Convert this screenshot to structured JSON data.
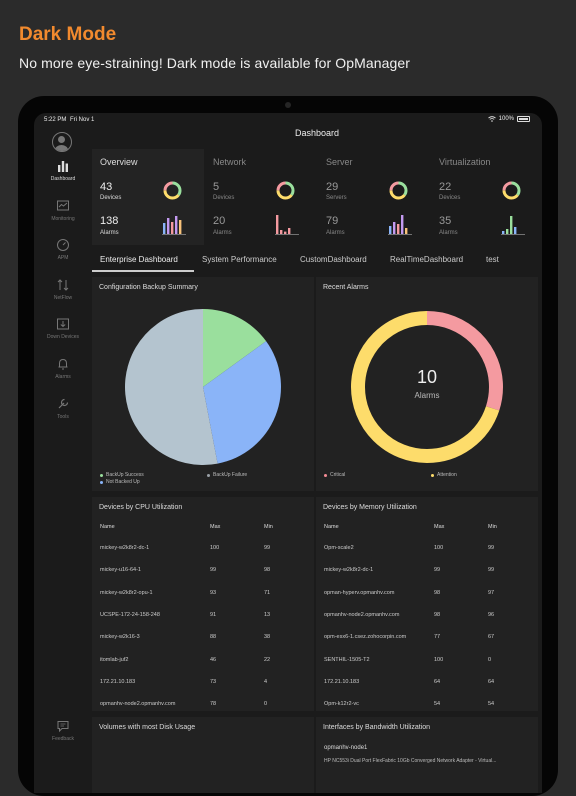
{
  "promo": {
    "title": "Dark Mode",
    "subtitle": "No more eye-straining! Dark mode is available for OpManager"
  },
  "status_bar": {
    "time": "5:22 PM",
    "date": "Fri Nov 1",
    "battery": "100%"
  },
  "header": {
    "title": "Dashboard"
  },
  "sidebar": {
    "items": [
      {
        "label": "Dashboard",
        "icon": "bar-chart-icon",
        "active": true
      },
      {
        "label": "Monitoring",
        "icon": "monitor-chart-icon",
        "active": false
      },
      {
        "label": "APM",
        "icon": "gauge-icon",
        "active": false
      },
      {
        "label": "NetFlow",
        "icon": "netflow-icon",
        "active": false
      },
      {
        "label": "Down Devices",
        "icon": "down-arrow-icon",
        "active": false
      },
      {
        "label": "Alarms",
        "icon": "bell-icon",
        "active": false
      },
      {
        "label": "Tools",
        "icon": "wrench-icon",
        "active": false
      }
    ],
    "feedback": {
      "label": "Feedback",
      "icon": "chat-icon"
    }
  },
  "summary": [
    {
      "title": "Overview",
      "count": "43",
      "count_label": "Devices",
      "alarms": "138",
      "alarms_label": "Alarms",
      "active": true
    },
    {
      "title": "Network",
      "count": "5",
      "count_label": "Devices",
      "alarms": "20",
      "alarms_label": "Alarms",
      "active": false
    },
    {
      "title": "Server",
      "count": "29",
      "count_label": "Servers",
      "alarms": "79",
      "alarms_label": "Alarms",
      "active": false
    },
    {
      "title": "Virtualization",
      "count": "22",
      "count_label": "Devices",
      "alarms": "35",
      "alarms_label": "Alarms",
      "active": false
    }
  ],
  "tabs": [
    {
      "label": "Enterprise Dashboard",
      "active": true
    },
    {
      "label": "System Performance",
      "active": false
    },
    {
      "label": "CustomDashboard",
      "active": false
    },
    {
      "label": "RealTimeDashboard",
      "active": false
    },
    {
      "label": "test",
      "active": false
    }
  ],
  "backup": {
    "title": "Configuration Backup Summary",
    "legend": [
      {
        "label": "BackUp Success",
        "color": "#9adf9d"
      },
      {
        "label": "BackUp Failure",
        "color": "#9aa0a6"
      },
      {
        "label": "Not Backed Up",
        "color": "#8ab4f8"
      }
    ]
  },
  "alarms": {
    "title": "Recent Alarms",
    "center_value": "10",
    "center_label": "Alarms",
    "legend": [
      {
        "label": "Critical",
        "color": "#f48b94"
      },
      {
        "label": "Attention",
        "color": "#fddc6b"
      }
    ]
  },
  "chart_data": [
    {
      "type": "pie",
      "categories": [
        "BackUp Success",
        "Not Backed Up",
        "BackUp Failure"
      ],
      "values": [
        15,
        32,
        53
      ],
      "colors": [
        "#9adf9d",
        "#8ab4f8",
        "#b4c4cf"
      ]
    },
    {
      "type": "pie",
      "categories": [
        "Critical",
        "Attention"
      ],
      "values": [
        3,
        7
      ],
      "colors": [
        "#f49aa0",
        "#fddc6b"
      ]
    }
  ],
  "cpu": {
    "title": "Devices by CPU Utilization",
    "headers": [
      "Name",
      "Max",
      "Min"
    ],
    "rows": [
      [
        "mickey-w2k8r2-dc-1",
        "100",
        "99"
      ],
      [
        "mickey-u16-64-1",
        "99",
        "98"
      ],
      [
        "mickey-w2k8r2-opu-1",
        "93",
        "71"
      ],
      [
        "UCSPE-172-24-158-248",
        "91",
        "13"
      ],
      [
        "mickey-w2k16-3",
        "88",
        "38"
      ],
      [
        "itomlab-juf2",
        "46",
        "22"
      ],
      [
        "172.21.10.183",
        "73",
        "4"
      ],
      [
        "opmanhv-node2.opmanhv.com",
        "78",
        "0"
      ]
    ]
  },
  "memory": {
    "title": "Devices by Memory Utilization",
    "headers": [
      "Name",
      "Max",
      "Min"
    ],
    "rows": [
      [
        "Opm-scale2",
        "100",
        "99"
      ],
      [
        "mickey-w2k8r2-dc-1",
        "99",
        "99"
      ],
      [
        "opman-hyperv.opmanhv.com",
        "98",
        "97"
      ],
      [
        "opmanhv-node2.opmanhv.com",
        "98",
        "96"
      ],
      [
        "opm-esx6-1.csez.zohocorpin.com",
        "77",
        "67"
      ],
      [
        "SENTHIL-1505-T2",
        "100",
        "0"
      ],
      [
        "172.21.10.183",
        "64",
        "64"
      ],
      [
        "Opm-k12r2-vc",
        "54",
        "54"
      ]
    ]
  },
  "disk": {
    "title": "Volumes with most Disk Usage"
  },
  "bandwidth": {
    "title": "Interfaces by Bandwidth Utilization",
    "device": "opmanhv-node1",
    "interface": "HP NC553i Dual Port FlexFabric 10Gb Converged Network Adapter - Virtual..."
  }
}
